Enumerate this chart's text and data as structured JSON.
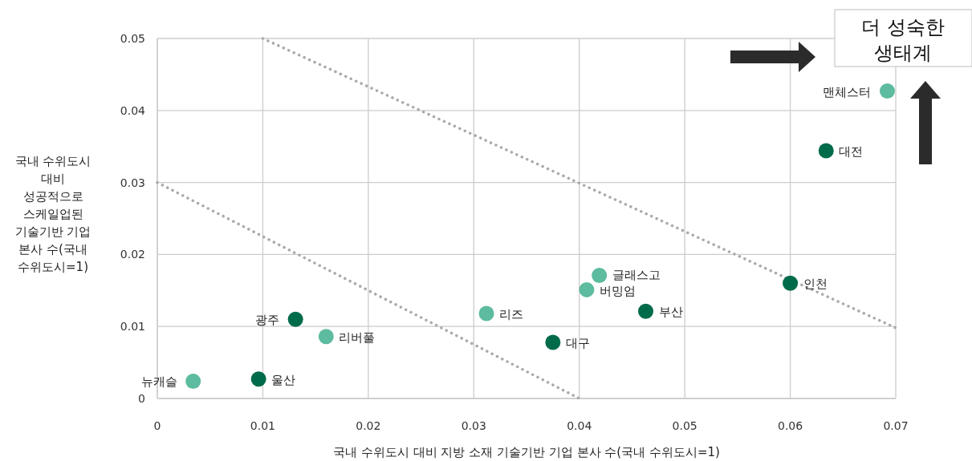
{
  "chart_data": {
    "type": "scatter",
    "xlabel": "국내 수위도시 대비 지방 소재 기술기반 기업 본사 수(국내 수위도시=1)",
    "ylabel": "국내 수위도시 대비 성공적으로 스케일업된 기술기반 기업 본사 수(국내 수위도시=1)",
    "xlim": [
      0,
      0.07
    ],
    "ylim": [
      0,
      0.05
    ],
    "xticks": [
      0,
      0.01,
      0.02,
      0.03,
      0.04,
      0.05,
      0.06,
      0.07
    ],
    "yticks": [
      0,
      0.01,
      0.02,
      0.03,
      0.04,
      0.05
    ],
    "grid": true,
    "marker": "circle",
    "series": [
      {
        "color": "#5dbb9f",
        "x": [
          0.0692,
          0.0419,
          0.0407,
          0.0312,
          0.016,
          0.0034
        ],
        "values": [
          0.0427,
          0.0171,
          0.0151,
          0.0118,
          0.0086,
          0.0024
        ]
      },
      {
        "color": "#006b4a",
        "x": [
          0.0634,
          0.06,
          0.0463,
          0.0375,
          0.0131,
          0.0096
        ],
        "values": [
          0.0344,
          0.016,
          0.0121,
          0.0078,
          0.011,
          0.0027
        ]
      },
      {
        "type": "line",
        "color": "#aaaaaa",
        "line_style": "dotted",
        "marker": "none",
        "x": [
          0.01,
          0.07
        ],
        "values": [
          0.05,
          0.0098
        ]
      },
      {
        "type": "line",
        "color": "#aaaaaa",
        "line_style": "dotted",
        "marker": "none",
        "x": [
          0,
          0.04
        ],
        "values": [
          0.03,
          0
        ]
      }
    ],
    "annotations": [
      {
        "text": "맨체스터",
        "x": 0.0692,
        "y": 0.0427
      },
      {
        "text": "글래스고",
        "x": 0.0419,
        "y": 0.0171
      },
      {
        "text": "버밍엄",
        "x": 0.0407,
        "y": 0.0151
      },
      {
        "text": "리즈",
        "x": 0.0312,
        "y": 0.0118
      },
      {
        "text": "리버풀",
        "x": 0.016,
        "y": 0.0086
      },
      {
        "text": "뉴캐슬",
        "x": 0.0034,
        "y": 0.0024
      },
      {
        "text": "대전",
        "x": 0.0634,
        "y": 0.0344
      },
      {
        "text": "인천",
        "x": 0.06,
        "y": 0.016
      },
      {
        "text": "부산",
        "x": 0.0463,
        "y": 0.0121
      },
      {
        "text": "대구",
        "x": 0.0375,
        "y": 0.0078
      },
      {
        "text": "광주",
        "x": 0.0131,
        "y": 0.011
      },
      {
        "text": "울산",
        "x": 0.0096,
        "y": 0.0027
      },
      "더 성숙한 생태계"
    ]
  }
}
